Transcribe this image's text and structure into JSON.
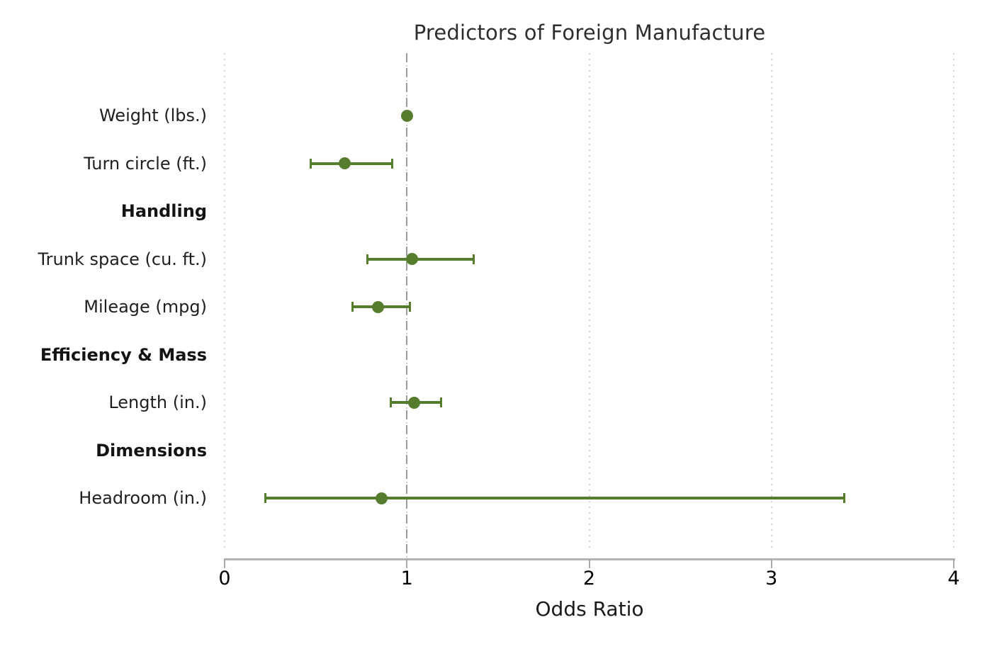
{
  "title": "Predictors of Foreign Manufacture",
  "chart_data": {
    "type": "scatter",
    "subtype": "forest-plot",
    "title": "Predictors of Foreign Manufacture",
    "xlabel": "Odds Ratio",
    "xlim": [
      0,
      4
    ],
    "xticks": [
      0,
      1,
      2,
      3,
      4
    ],
    "refline_x": 1,
    "grid": "dotted-vertical-gridlines-at-xticks",
    "legend": "none",
    "colors": {
      "marker": "#567d2d",
      "reference_line": "#9c9c9c",
      "gridline": "#d6d6d6",
      "axis_line": "#b5b5b5"
    },
    "rows": [
      {
        "label": "Weight (lbs.)",
        "header": false,
        "or": 1.0,
        "ci_low": 1.0,
        "ci_high": 1.0
      },
      {
        "label": "Turn circle (ft.)",
        "header": false,
        "or": 0.66,
        "ci_low": 0.47,
        "ci_high": 0.92
      },
      {
        "label": "Handling",
        "header": true
      },
      {
        "label": "Trunk space (cu. ft.)",
        "header": false,
        "or": 1.03,
        "ci_low": 0.78,
        "ci_high": 1.37
      },
      {
        "label": "Mileage (mpg)",
        "header": false,
        "or": 0.84,
        "ci_low": 0.7,
        "ci_high": 1.02
      },
      {
        "label": "Efficiency & Mass",
        "header": true
      },
      {
        "label": "Length (in.)",
        "header": false,
        "or": 1.04,
        "ci_low": 0.91,
        "ci_high": 1.19
      },
      {
        "label": "Dimensions",
        "header": true
      },
      {
        "label": "Headroom (in.)",
        "header": false,
        "or": 0.86,
        "ci_low": 0.22,
        "ci_high": 3.4
      }
    ]
  }
}
